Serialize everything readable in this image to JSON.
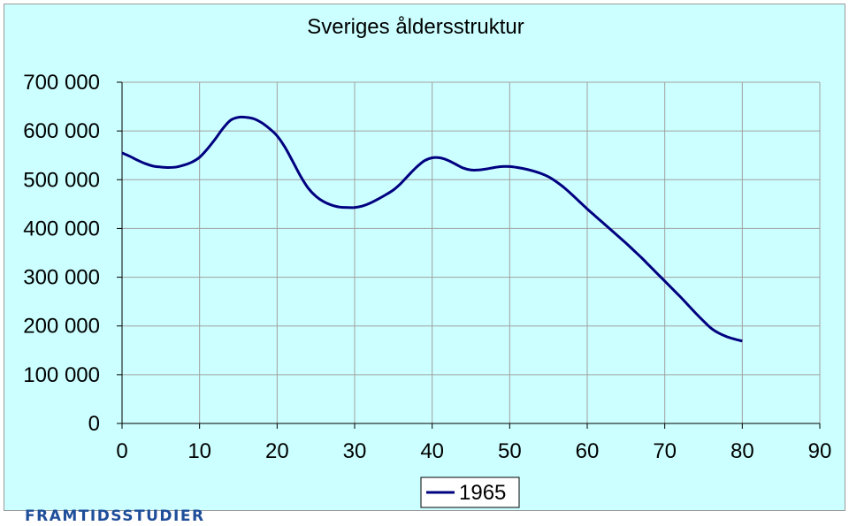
{
  "chart_data": {
    "type": "line",
    "title": "Sveriges åldersstruktur",
    "xlabel": "",
    "ylabel": "",
    "xlim": [
      0,
      90
    ],
    "ylim": [
      0,
      700000
    ],
    "x_ticks": [
      0,
      10,
      20,
      30,
      40,
      50,
      60,
      70,
      80,
      90
    ],
    "y_ticks": [
      0,
      100000,
      200000,
      300000,
      400000,
      500000,
      600000,
      700000
    ],
    "y_tick_labels": [
      "0",
      "100 000",
      "200 000",
      "300 000",
      "400 000",
      "500 000",
      "600 000",
      "700 000"
    ],
    "x_tick_labels": [
      "0",
      "10",
      "20",
      "30",
      "40",
      "50",
      "60",
      "70",
      "80",
      "90"
    ],
    "grid": "horizontal and vertical",
    "legend_position": "bottom",
    "colors": {
      "plot_background": "#ccffff",
      "line": "#000080",
      "grid": "#a0a0a0"
    },
    "series": [
      {
        "name": "1965",
        "x": [
          0,
          1,
          2,
          3,
          4,
          5,
          6,
          7,
          8,
          9,
          10,
          11,
          12,
          13,
          14,
          15,
          16,
          17,
          18,
          19,
          20,
          21,
          22,
          23,
          24,
          25,
          26,
          27,
          28,
          29,
          30,
          31,
          32,
          33,
          34,
          35,
          36,
          37,
          38,
          39,
          40,
          41,
          42,
          43,
          44,
          45,
          46,
          47,
          48,
          49,
          50,
          51,
          52,
          53,
          54,
          55,
          56,
          57,
          58,
          59,
          60,
          61,
          62,
          63,
          64,
          65,
          66,
          67,
          68,
          69,
          70,
          71,
          72,
          73,
          74,
          75,
          76,
          77,
          78,
          79,
          80
        ],
        "values": [
          555000,
          548000,
          540000,
          533000,
          528000,
          526000,
          525000,
          526000,
          530000,
          536000,
          546000,
          563000,
          583000,
          605000,
          622000,
          628000,
          628000,
          625000,
          617000,
          605000,
          590000,
          567000,
          538000,
          508000,
          483000,
          466000,
          455000,
          448000,
          444000,
          443000,
          443000,
          446000,
          452000,
          460000,
          469000,
          479000,
          493000,
          510000,
          526000,
          539000,
          545000,
          545000,
          540000,
          532000,
          524000,
          520000,
          520000,
          522000,
          525000,
          527000,
          527000,
          525000,
          522000,
          518000,
          513000,
          506000,
          496000,
          484000,
          470000,
          455000,
          440000,
          426000,
          412000,
          398000,
          384000,
          370000,
          355000,
          340000,
          324000,
          308000,
          292000,
          276000,
          260000,
          243000,
          226000,
          210000,
          195000,
          185000,
          178000,
          173000,
          169000
        ]
      }
    ]
  },
  "logo": {
    "text": "FRAMTIDSSTUDIER"
  }
}
